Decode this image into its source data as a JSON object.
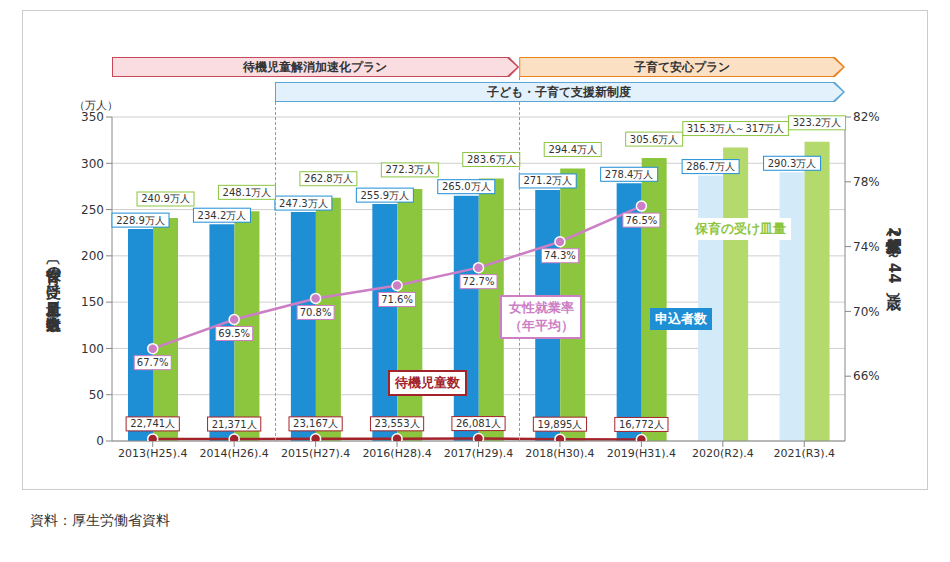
{
  "chart_data": {
    "type": "bar",
    "categories": [
      "2013(H25).4",
      "2014(H26).4",
      "2015(H27).4",
      "2016(H28).4",
      "2017(H29).4",
      "2018(H30).4",
      "2019(H31).4",
      "2020(R2).4",
      "2021(R3).4"
    ],
    "y_label": "〔保育の受け皿量／申込者数〕",
    "y_unit": "（万人）",
    "y2_label": "〔女性就業率（25～44歳）〕",
    "ylim": [
      0,
      350
    ],
    "yticks": [
      0,
      50,
      100,
      150,
      200,
      250,
      300,
      350
    ],
    "y2lim": [
      62,
      82
    ],
    "y2ticks": [
      {
        "value": 66,
        "label": "66%"
      },
      {
        "value": 70,
        "label": "70%"
      },
      {
        "value": 74,
        "label": "74%"
      },
      {
        "value": 78,
        "label": "78%"
      },
      {
        "value": 82,
        "label": "82%"
      }
    ],
    "grid": true,
    "data_labels": true,
    "series": [
      {
        "name": "申込者数",
        "type": "bar",
        "color": "#1e8fd5",
        "colors": [
          "#1e8fd5",
          "#1e8fd5",
          "#1e8fd5",
          "#1e8fd5",
          "#1e8fd5",
          "#1e8fd5",
          "#1e8fd5",
          "#d3eaf8",
          "#d3eaf8"
        ],
        "values": [
          228.9,
          234.2,
          247.3,
          255.9,
          265.0,
          271.2,
          278.4,
          286.7,
          290.3
        ],
        "value_labels": [
          "228.9万人",
          "234.2万人",
          "247.3万人",
          "255.9万人",
          "265.0万人",
          "271.2万人",
          "278.4万人",
          "286.7万人",
          "290.3万人"
        ]
      },
      {
        "name": "保育の受け皿量",
        "type": "bar",
        "color": "#8cc63f",
        "colors": [
          "#8cc63f",
          "#8cc63f",
          "#8cc63f",
          "#8cc63f",
          "#8cc63f",
          "#8cc63f",
          "#8cc63f",
          "#b4d96c",
          "#b4d96c"
        ],
        "values": [
          240.9,
          248.1,
          262.8,
          272.3,
          283.6,
          294.4,
          305.6,
          317,
          323.2
        ],
        "value_labels": [
          "240.9万人",
          "248.1万人",
          "262.8万人",
          "272.3万人",
          "283.6万人",
          "294.4万人",
          "305.6万人",
          "315.3万人～317万人",
          "323.2万人"
        ]
      },
      {
        "name": "女性就業率（年平均）",
        "type": "line",
        "axis": "y2",
        "color": "#cc7fc4",
        "marker": "circle",
        "values": [
          67.7,
          69.5,
          70.8,
          71.6,
          72.7,
          74.3,
          76.5,
          null,
          null
        ],
        "value_labels": [
          "67.7%",
          "69.5%",
          "70.8%",
          "71.6%",
          "72.7%",
          "74.3%",
          "76.5%",
          null,
          null
        ]
      },
      {
        "name": "待機児童数",
        "type": "line",
        "color": "#a3232b",
        "marker": "circle",
        "values": [
          2.2741,
          2.1371,
          2.3167,
          2.3553,
          2.6081,
          1.9895,
          1.6772,
          null,
          null
        ],
        "value_labels": [
          "22,741人",
          "21,371人",
          "23,167人",
          "23,553人",
          "26,081人",
          "19,895人",
          "16,772人",
          null,
          null
        ]
      }
    ],
    "annotations": [
      {
        "text": "待機児童解消加速化プラン",
        "from": "2013(H25).4",
        "to": "2017(H29).4"
      },
      {
        "text": "子育て安心プラン",
        "from": "2018(H30).4",
        "to": "2021(R3).4"
      },
      {
        "text": "子ども・子育て支援新制度",
        "from": "2015(H27).4",
        "to": "2021(R3).4"
      }
    ],
    "source": "資料：厚生労働省資料"
  }
}
